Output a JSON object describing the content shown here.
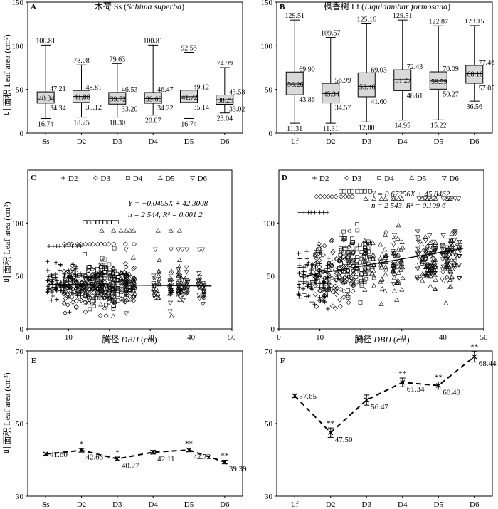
{
  "figure": {
    "ylabel_leaf_area": "叶面积 Leaf area (cm²)",
    "xlabel_dbh_prefix": "胸径 ",
    "xlabel_dbh_italic": "DBH",
    "xlabel_dbh_suffix": " (cm)"
  },
  "chart_data": [
    {
      "panel": "A",
      "type": "box",
      "title_plain": "木荷 Ss (",
      "title_italic": "Schima superba",
      "title_end": ")",
      "categories": [
        "Ss",
        "D2",
        "D3",
        "D4",
        "D5",
        "D6"
      ],
      "ylim": [
        0,
        150
      ],
      "yticks": [
        0,
        50,
        100,
        150
      ],
      "boxes": [
        {
          "min": 16.74,
          "q1": 34.34,
          "median": 40.34,
          "q3": 47.21,
          "max": 100.81
        },
        {
          "min": 18.25,
          "q1": 35.12,
          "median": 41.88,
          "q3": 48.81,
          "max": 78.08
        },
        {
          "min": 18.3,
          "q1": 33.2,
          "median": 39.72,
          "q3": 46.53,
          "max": 79.63
        },
        {
          "min": 20.67,
          "q1": 34.22,
          "median": 39.66,
          "q3": 46.47,
          "max": 100.81
        },
        {
          "min": 16.74,
          "q1": 35.14,
          "median": 41.72,
          "q3": 49.12,
          "max": 92.53
        },
        {
          "min": 23.04,
          "q1": 33.02,
          "median": 38.29,
          "q3": 43.58,
          "max": 74.99
        }
      ]
    },
    {
      "panel": "B",
      "type": "box",
      "title_plain": "枫香树 Lf (",
      "title_italic": "Liquidambar formosana",
      "title_end": ")",
      "categories": [
        "Lf",
        "D2",
        "D3",
        "D4",
        "D5",
        "D6"
      ],
      "ylim": [
        0,
        150
      ],
      "yticks": [
        0,
        50,
        100,
        150
      ],
      "boxes": [
        {
          "min": 11.31,
          "q1": 43.86,
          "median": 56.26,
          "q3": 69.9,
          "max": 129.51
        },
        {
          "min": 11.31,
          "q1": 34.57,
          "median": 45.34,
          "q3": 56.99,
          "max": 109.57
        },
        {
          "min": 12.8,
          "q1": 41.6,
          "median": 53.46,
          "q3": 69.03,
          "max": 125.16
        },
        {
          "min": 14.95,
          "q1": 48.61,
          "median": 61.27,
          "q3": 72.43,
          "max": 129.51
        },
        {
          "min": 15.22,
          "q1": 50.27,
          "median": 59.59,
          "q3": 70.09,
          "max": 122.87
        },
        {
          "min": 36.56,
          "q1": 57.05,
          "median": 68.1,
          "q3": 77.46,
          "max": 123.15
        }
      ]
    },
    {
      "panel": "C",
      "type": "scatter",
      "legend": [
        "D2",
        "D3",
        "D4",
        "D5",
        "D6"
      ],
      "xlim": [
        0,
        50
      ],
      "ylim": [
        0,
        150
      ],
      "xticks": [
        0,
        10,
        20,
        30,
        40,
        50
      ],
      "yticks": [
        0,
        50,
        100
      ],
      "equation_line1": "Y = −0.0405X + 42.3008",
      "equation_line2": "n = 2 544, R² = 0.001 2",
      "fit": {
        "slope": -0.0405,
        "intercept": 42.3008
      },
      "series": [
        {
          "name": "D2",
          "xs": [
            5,
            6,
            7,
            8,
            9,
            10,
            11,
            12,
            13
          ],
          "mean": 43,
          "sd": 8,
          "maxv": 78
        },
        {
          "name": "D3",
          "xs": [
            9,
            10,
            11,
            12,
            13,
            14,
            15,
            16,
            17,
            18,
            19,
            20,
            21,
            24,
            26
          ],
          "mean": 40,
          "sd": 9,
          "maxv": 80
        },
        {
          "name": "D4",
          "xs": [
            14,
            15,
            16,
            17,
            18,
            19,
            20,
            21,
            22
          ],
          "mean": 42,
          "sd": 11,
          "maxv": 101
        },
        {
          "name": "D5",
          "xs": [
            18,
            21,
            23,
            24,
            25,
            26,
            32,
            35,
            37
          ],
          "mean": 43,
          "sd": 10,
          "maxv": 93
        },
        {
          "name": "D6",
          "xs": [
            24,
            31,
            35,
            37,
            38,
            39,
            42,
            43
          ],
          "mean": 39,
          "sd": 7,
          "maxv": 75
        }
      ]
    },
    {
      "panel": "D",
      "type": "scatter",
      "legend": [
        "D2",
        "D3",
        "D4",
        "D5",
        "D6"
      ],
      "xlim": [
        0,
        50
      ],
      "ylim": [
        0,
        150
      ],
      "xticks": [
        0,
        10,
        20,
        30,
        40,
        50
      ],
      "yticks": [
        0,
        50,
        100
      ],
      "equation_line1": "Y = 0.67256X + 45.8462",
      "equation_line2": "n = 2 543, R² = 0.109 6",
      "fit": {
        "slope": 0.67256,
        "intercept": 45.8462
      },
      "series": [
        {
          "name": "D2",
          "xs": [
            5,
            6,
            7,
            8,
            9,
            10,
            11,
            12
          ],
          "mean": 47,
          "sd": 13,
          "maxv": 110
        },
        {
          "name": "D3",
          "xs": [
            9,
            10,
            11,
            12,
            13,
            14,
            15,
            16,
            17,
            18
          ],
          "mean": 55,
          "sd": 16,
          "maxv": 125
        },
        {
          "name": "D4",
          "xs": [
            15,
            16,
            17,
            18,
            19,
            20,
            21,
            22
          ],
          "mean": 62,
          "sd": 16,
          "maxv": 130
        },
        {
          "name": "D5",
          "xs": [
            21,
            23,
            25,
            26,
            28,
            29,
            30,
            35,
            36,
            37,
            38,
            41,
            42
          ],
          "mean": 61,
          "sd": 14,
          "maxv": 123
        },
        {
          "name": "D6",
          "xs": [
            28,
            34,
            36,
            37,
            38,
            40,
            41,
            42,
            43,
            44
          ],
          "mean": 68,
          "sd": 12,
          "maxv": 123
        }
      ]
    },
    {
      "panel": "E",
      "type": "line",
      "categories": [
        "Ss",
        "D2",
        "D3",
        "D4",
        "D5",
        "D6"
      ],
      "values": [
        41.6,
        42.63,
        40.27,
        42.11,
        42.72,
        39.39
      ],
      "errors": [
        0.3,
        0.5,
        0.5,
        0.5,
        0.5,
        0.5
      ],
      "significance": [
        "",
        "*",
        "*",
        "",
        "**",
        "**"
      ],
      "value_labels": [
        "41.60",
        "42.63",
        "40.27",
        "42.11",
        "42.72",
        "39.39"
      ],
      "ylim": [
        30,
        70
      ],
      "yticks": [
        30,
        50,
        70
      ]
    },
    {
      "panel": "F",
      "type": "line",
      "categories": [
        "Lf",
        "D2",
        "D3",
        "D4",
        "D5",
        "D6"
      ],
      "values": [
        57.65,
        47.5,
        56.47,
        61.34,
        60.48,
        68.44
      ],
      "errors": [
        0.5,
        1.3,
        1.4,
        1.2,
        1.0,
        1.5
      ],
      "significance": [
        "",
        "**",
        "",
        "**",
        "**",
        "**"
      ],
      "value_labels": [
        "57.65",
        "47.50",
        "56.47",
        "61.34",
        "60.48",
        "68.44"
      ],
      "ylim": [
        30,
        70
      ],
      "yticks": [
        30,
        50,
        70
      ]
    }
  ]
}
